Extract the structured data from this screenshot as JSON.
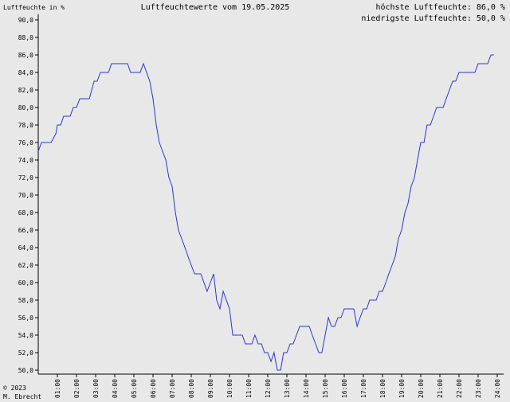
{
  "chart_data": {
    "type": "line",
    "title": "Luftfeuchtewerte vom 19.05.2025",
    "y_label": "Luftfeuchte in %",
    "annotations": [
      "höchste Luftfeuchte: 86,0 %",
      "niedrigste Luftfeuchte: 50,0 %",
      "© 2023",
      "M. Ebrecht"
    ],
    "xlim": [
      0,
      24
    ],
    "xticks": [
      {
        "value": 1,
        "label": "01:00"
      },
      {
        "value": 2,
        "label": "02:00"
      },
      {
        "value": 3,
        "label": "03:00"
      },
      {
        "value": 4,
        "label": "04:00"
      },
      {
        "value": 5,
        "label": "05:00"
      },
      {
        "value": 6,
        "label": "06:00"
      },
      {
        "value": 7,
        "label": "07:00"
      },
      {
        "value": 8,
        "label": "08:00"
      },
      {
        "value": 9,
        "label": "09:00"
      },
      {
        "value": 10,
        "label": "10:00"
      },
      {
        "value": 11,
        "label": "11:00"
      },
      {
        "value": 12,
        "label": "12:00"
      },
      {
        "value": 13,
        "label": "13:00"
      },
      {
        "value": 14,
        "label": "14:00"
      },
      {
        "value": 15,
        "label": "15:00"
      },
      {
        "value": 16,
        "label": "16:00"
      },
      {
        "value": 17,
        "label": "17:00"
      },
      {
        "value": 18,
        "label": "18:00"
      },
      {
        "value": 19,
        "label": "19:00"
      },
      {
        "value": 20,
        "label": "20:00"
      },
      {
        "value": 21,
        "label": "21:00"
      },
      {
        "value": 22,
        "label": "22:00"
      },
      {
        "value": 23,
        "label": "23:00"
      },
      {
        "value": 24,
        "label": "24:00"
      }
    ],
    "ylim": [
      50,
      90
    ],
    "yticks": [
      {
        "value": 50,
        "label": "50,0"
      },
      {
        "value": 52,
        "label": "52,0"
      },
      {
        "value": 54,
        "label": "54,0"
      },
      {
        "value": 56,
        "label": "56,0"
      },
      {
        "value": 58,
        "label": "58,0"
      },
      {
        "value": 60,
        "label": "60,0"
      },
      {
        "value": 62,
        "label": "62,0"
      },
      {
        "value": 64,
        "label": "64,0"
      },
      {
        "value": 66,
        "label": "66,0"
      },
      {
        "value": 68,
        "label": "68,0"
      },
      {
        "value": 70,
        "label": "70,0"
      },
      {
        "value": 72,
        "label": "72,0"
      },
      {
        "value": 74,
        "label": "74,0"
      },
      {
        "value": 76,
        "label": "76,0"
      },
      {
        "value": 78,
        "label": "78,0"
      },
      {
        "value": 80,
        "label": "80,0"
      },
      {
        "value": 82,
        "label": "82,0"
      },
      {
        "value": 84,
        "label": "84,0"
      },
      {
        "value": 86,
        "label": "86,0"
      },
      {
        "value": 88,
        "label": "88,0"
      },
      {
        "value": 90,
        "label": "90,0"
      }
    ],
    "color": "#3333cc",
    "x": [
      0,
      0.17,
      0.67,
      0.92,
      1,
      1.17,
      1.33,
      1.67,
      1.83,
      2,
      2.17,
      2.67,
      2.92,
      3.08,
      3.25,
      3.67,
      3.83,
      4.67,
      4.83,
      5.33,
      5.5,
      5.83,
      6,
      6.17,
      6.33,
      6.5,
      6.67,
      6.83,
      7,
      7.17,
      7.33,
      7.5,
      7.67,
      7.83,
      8,
      8.17,
      8.5,
      8.83,
      9,
      9.17,
      9.33,
      9.5,
      9.67,
      10,
      10.17,
      10.67,
      10.83,
      11.17,
      11.33,
      11.5,
      11.67,
      11.83,
      12,
      12.17,
      12.33,
      12.5,
      12.67,
      12.83,
      13,
      13.17,
      13.33,
      13.5,
      13.67,
      14.17,
      14.33,
      14.5,
      14.67,
      14.83,
      15,
      15.17,
      15.33,
      15.5,
      15.67,
      15.83,
      16,
      16.5,
      16.67,
      16.83,
      17,
      17.17,
      17.33,
      17.67,
      17.83,
      18,
      18.17,
      18.33,
      18.5,
      18.67,
      18.83,
      19,
      19.17,
      19.33,
      19.5,
      19.67,
      19.83,
      20,
      20.17,
      20.33,
      20.5,
      20.67,
      20.83,
      21.17,
      21.33,
      21.5,
      21.67,
      21.83,
      22,
      22.83,
      23,
      23.5,
      23.67,
      23.83
    ],
    "values": [
      75,
      76,
      76,
      77,
      78,
      78,
      79,
      79,
      80,
      80,
      81,
      81,
      83,
      83,
      84,
      84,
      85,
      85,
      84,
      84,
      85,
      83,
      81,
      78,
      76,
      75,
      74,
      72,
      71,
      68,
      66,
      65,
      64,
      63,
      62,
      61,
      61,
      59,
      60,
      61,
      58,
      57,
      59,
      57,
      54,
      54,
      53,
      53,
      54,
      53,
      53,
      52,
      52,
      51,
      52,
      50,
      50,
      52,
      52,
      53,
      53,
      54,
      55,
      55,
      54,
      53,
      52,
      52,
      54,
      56,
      55,
      55,
      56,
      56,
      57,
      57,
      55,
      56,
      57,
      57,
      58,
      58,
      59,
      59,
      60,
      61,
      62,
      63,
      65,
      66,
      68,
      69,
      71,
      72,
      74,
      76,
      76,
      78,
      78,
      79,
      80,
      80,
      81,
      82,
      83,
      83,
      84,
      84,
      85,
      85,
      86,
      86
    ]
  }
}
